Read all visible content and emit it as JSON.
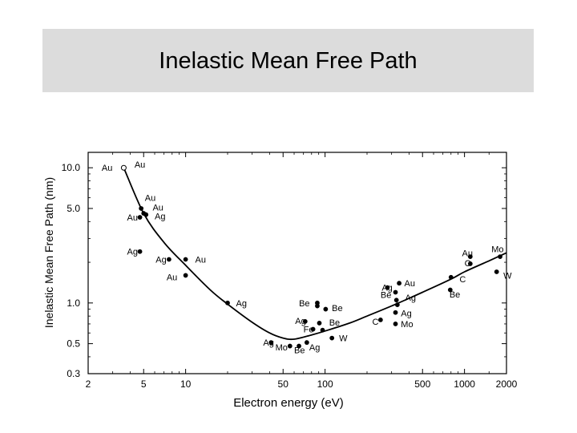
{
  "chart_data": {
    "type": "scatter",
    "title": "Inelastic Mean Free Path",
    "xlabel": "Electron energy (eV)",
    "ylabel": "Inelastic Mean Free Path (nm)",
    "x_scale": "log",
    "y_scale": "log",
    "xlim": [
      2,
      2000
    ],
    "ylim": [
      0.3,
      13
    ],
    "x_ticks": [
      2,
      5,
      10,
      50,
      100,
      500,
      1000,
      2000
    ],
    "x_tick_labels": [
      "2",
      "5",
      "10",
      "50",
      "100",
      "500",
      "1000",
      "2000"
    ],
    "y_ticks": [
      0.3,
      0.5,
      1.0,
      5.0,
      10.0
    ],
    "y_tick_labels": [
      "0.3",
      "0.5",
      "1.0",
      "5.0",
      "10.0"
    ],
    "grid": false,
    "points": [
      {
        "x": 3.6,
        "y": 10.0,
        "label": "Au",
        "open": true
      },
      {
        "x": 4.8,
        "y": 5.0,
        "label": "Au"
      },
      {
        "x": 5.0,
        "y": 4.6,
        "label": "Au"
      },
      {
        "x": 5.2,
        "y": 4.5,
        "label": "Ag"
      },
      {
        "x": 4.7,
        "y": 4.3,
        "label": "Au"
      },
      {
        "x": 4.7,
        "y": 2.4,
        "label": "Ag"
      },
      {
        "x": 7.6,
        "y": 2.1,
        "label": "Ag"
      },
      {
        "x": 10.0,
        "y": 2.1,
        "label": "Au"
      },
      {
        "x": 10.0,
        "y": 1.6,
        "label": "Au"
      },
      {
        "x": 20.0,
        "y": 1.0,
        "label": "Ag"
      },
      {
        "x": 41.0,
        "y": 0.51,
        "label": "Ag"
      },
      {
        "x": 56.0,
        "y": 0.48,
        "label": "Mo"
      },
      {
        "x": 65.0,
        "y": 0.48,
        "label": "Be"
      },
      {
        "x": 74.0,
        "y": 0.51,
        "label": "Ag"
      },
      {
        "x": 72.0,
        "y": 0.73,
        "label": "Ag"
      },
      {
        "x": 82.0,
        "y": 0.64,
        "label": "Fe"
      },
      {
        "x": 88.0,
        "y": 1.0,
        "label": "Be"
      },
      {
        "x": 88.0,
        "y": 0.95,
        "label": "Be"
      },
      {
        "x": 101.0,
        "y": 0.9,
        "label": "Be"
      },
      {
        "x": 91.0,
        "y": 0.71,
        "label": "Be"
      },
      {
        "x": 96.0,
        "y": 0.63,
        "label": "Fe"
      },
      {
        "x": 112.0,
        "y": 0.55,
        "label": "W"
      },
      {
        "x": 250.0,
        "y": 0.75,
        "label": "C"
      },
      {
        "x": 280.0,
        "y": 1.3,
        "label": "Ag"
      },
      {
        "x": 320.0,
        "y": 1.2,
        "label": "Be"
      },
      {
        "x": 325.0,
        "y": 1.05,
        "label": "Be"
      },
      {
        "x": 340.0,
        "y": 1.4,
        "label": "Au"
      },
      {
        "x": 330.0,
        "y": 0.97,
        "label": "Ag"
      },
      {
        "x": 320.0,
        "y": 0.85,
        "label": "Ag"
      },
      {
        "x": 320.0,
        "y": 0.7,
        "label": "Mo"
      },
      {
        "x": 800.0,
        "y": 1.55,
        "label": "C"
      },
      {
        "x": 790.0,
        "y": 1.25,
        "label": "Be"
      },
      {
        "x": 1100.0,
        "y": 2.2,
        "label": "Au"
      },
      {
        "x": 1100.0,
        "y": 1.95,
        "label": "C"
      },
      {
        "x": 1800.0,
        "y": 2.2,
        "label": "Mo"
      },
      {
        "x": 1700.0,
        "y": 1.7,
        "label": "W"
      }
    ],
    "curve": {
      "x": [
        3.6,
        5,
        7,
        10,
        15,
        20,
        30,
        40,
        50,
        60,
        80,
        100,
        150,
        200,
        300,
        500,
        800,
        1000,
        1500,
        2000
      ],
      "y": [
        10.0,
        4.6,
        2.8,
        1.9,
        1.25,
        0.98,
        0.72,
        0.6,
        0.55,
        0.54,
        0.58,
        0.62,
        0.71,
        0.8,
        0.95,
        1.2,
        1.5,
        1.7,
        2.05,
        2.35
      ]
    },
    "labels": [
      {
        "text": "Au",
        "x": 2.5,
        "y": 10.0
      },
      {
        "text": "Au",
        "x": 4.3,
        "y": 10.6
      },
      {
        "text": "Au",
        "x": 5.1,
        "y": 6.0
      },
      {
        "text": "Au",
        "x": 5.8,
        "y": 5.1
      },
      {
        "text": "Ag",
        "x": 6.0,
        "y": 4.4
      },
      {
        "text": "Au",
        "x": 3.8,
        "y": 4.3
      },
      {
        "text": "Ag",
        "x": 3.8,
        "y": 2.4
      },
      {
        "text": "Ag",
        "x": 6.1,
        "y": 2.1
      },
      {
        "text": "Au",
        "x": 11.7,
        "y": 2.1
      },
      {
        "text": "Au",
        "x": 7.3,
        "y": 1.55
      },
      {
        "text": "Ag",
        "x": 23.0,
        "y": 1.0
      },
      {
        "text": "Be",
        "x": 65.0,
        "y": 1.0
      },
      {
        "text": "Be",
        "x": 112.0,
        "y": 0.92
      },
      {
        "text": "Ag",
        "x": 61.0,
        "y": 0.74
      },
      {
        "text": "Be",
        "x": 107.0,
        "y": 0.72
      },
      {
        "text": "Fe",
        "x": 70.0,
        "y": 0.64
      },
      {
        "text": "W",
        "x": 126.0,
        "y": 0.55
      },
      {
        "text": "Ag",
        "x": 36.0,
        "y": 0.51
      },
      {
        "text": "Ag",
        "x": 77.0,
        "y": 0.47
      },
      {
        "text": "Mo",
        "x": 44.0,
        "y": 0.47
      },
      {
        "text": "Be",
        "x": 60.0,
        "y": 0.45
      },
      {
        "text": "Ag",
        "x": 255.0,
        "y": 1.3
      },
      {
        "text": "Au",
        "x": 370.0,
        "y": 1.4
      },
      {
        "text": "Be",
        "x": 250.0,
        "y": 1.15
      },
      {
        "text": "Ag",
        "x": 375.0,
        "y": 1.1
      },
      {
        "text": "Ag",
        "x": 350.0,
        "y": 0.84
      },
      {
        "text": "C",
        "x": 218.0,
        "y": 0.73
      },
      {
        "text": "Mo",
        "x": 350.0,
        "y": 0.7
      },
      {
        "text": "Au",
        "x": 960.0,
        "y": 2.35
      },
      {
        "text": "C",
        "x": 1000.0,
        "y": 1.98
      },
      {
        "text": "C",
        "x": 920.0,
        "y": 1.5
      },
      {
        "text": "Be",
        "x": 780.0,
        "y": 1.16
      },
      {
        "text": "Mo",
        "x": 1560.0,
        "y": 2.5
      },
      {
        "text": "W",
        "x": 1900.0,
        "y": 1.6
      }
    ]
  }
}
